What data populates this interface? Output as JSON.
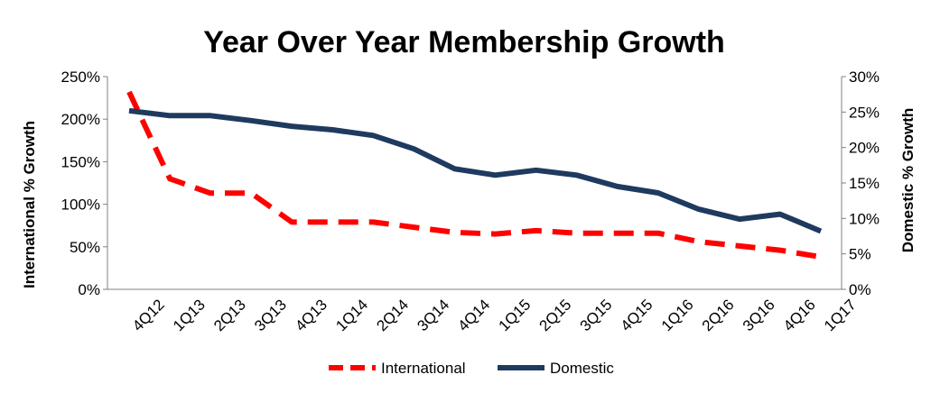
{
  "chart_data": {
    "type": "line",
    "title": "Year Over Year Membership Growth",
    "categories": [
      "4Q12",
      "1Q13",
      "2Q13",
      "3Q13",
      "4Q13",
      "1Q14",
      "2Q14",
      "3Q14",
      "4Q14",
      "1Q15",
      "2Q15",
      "3Q15",
      "4Q15",
      "1Q16",
      "2Q16",
      "3Q16",
      "4Q16",
      "1Q17"
    ],
    "y_left": {
      "label": "International % Growth",
      "range": [
        0,
        250
      ],
      "ticks": [
        0,
        50,
        100,
        150,
        200,
        250
      ],
      "tick_labels": [
        "0%",
        "50%",
        "100%",
        "150%",
        "200%",
        "250%"
      ]
    },
    "y_right": {
      "label": "Domestic % Growth",
      "range": [
        0,
        30
      ],
      "ticks": [
        0,
        5,
        10,
        15,
        20,
        25,
        30
      ],
      "tick_labels": [
        "0%",
        "5%",
        "10%",
        "15%",
        "20%",
        "25%",
        "30%"
      ]
    },
    "series": [
      {
        "name": "International",
        "axis": "left",
        "color": "#ff0000",
        "style": "dashed",
        "values": [
          232,
          130,
          113,
          113,
          79,
          79,
          79,
          73,
          67,
          65,
          69,
          66,
          66,
          66,
          56,
          51,
          46,
          38
        ]
      },
      {
        "name": "Domestic",
        "axis": "right",
        "color": "#1f3a5f",
        "style": "solid",
        "values": [
          25.2,
          24.5,
          24.5,
          23.8,
          23.0,
          22.5,
          21.7,
          19.8,
          17.0,
          16.1,
          16.8,
          16.1,
          14.5,
          13.6,
          11.3,
          9.9,
          10.6,
          8.2
        ]
      }
    ],
    "legend": {
      "position": "bottom",
      "items": [
        "International",
        "Domestic"
      ]
    },
    "grid": false
  }
}
